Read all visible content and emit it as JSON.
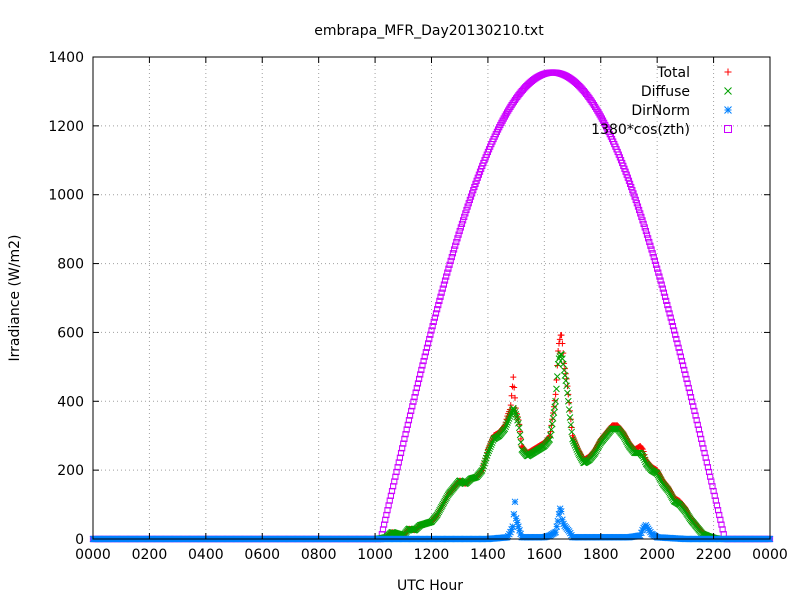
{
  "chart_data": {
    "type": "scatter",
    "title": "embrapa_MFR_Day20130210.txt",
    "xlabel": "UTC Hour",
    "ylabel": "Irradiance (W/m2)",
    "xlim": [
      0,
      2400
    ],
    "ylim": [
      0,
      1400
    ],
    "grid": true,
    "legend_position": "top-right",
    "x_ticks": [
      "0000",
      "0200",
      "0400",
      "0600",
      "0800",
      "1000",
      "1200",
      "1400",
      "1600",
      "1800",
      "2000",
      "2200",
      "0000"
    ],
    "y_ticks": [
      0,
      200,
      400,
      600,
      800,
      1000,
      1200,
      1400
    ],
    "series": [
      {
        "name": "Total",
        "marker": "plus",
        "color": "#ff0000",
        "x": [
          1010,
          1040,
          1060,
          1080,
          1100,
          1120,
          1140,
          1160,
          1180,
          1200,
          1220,
          1240,
          1260,
          1280,
          1300,
          1320,
          1340,
          1360,
          1380,
          1400,
          1420,
          1440,
          1460,
          1470,
          1480,
          1490,
          1500,
          1510,
          1520,
          1540,
          1560,
          1580,
          1600,
          1620,
          1640,
          1650,
          1660,
          1665,
          1670,
          1680,
          1690,
          1700,
          1720,
          1740,
          1760,
          1780,
          1800,
          1820,
          1840,
          1860,
          1880,
          1900,
          1920,
          1940,
          1950,
          1960,
          1980,
          2000,
          2020,
          2040,
          2060,
          2080,
          2100,
          2120,
          2140,
          2160,
          2180,
          2200,
          2220
        ],
        "y": [
          0,
          5,
          20,
          15,
          10,
          30,
          25,
          40,
          45,
          50,
          70,
          100,
          130,
          150,
          170,
          160,
          175,
          180,
          200,
          260,
          300,
          310,
          330,
          360,
          380,
          470,
          370,
          340,
          270,
          250,
          260,
          270,
          280,
          300,
          420,
          560,
          600,
          560,
          510,
          460,
          380,
          300,
          260,
          230,
          240,
          260,
          290,
          310,
          330,
          330,
          310,
          280,
          260,
          270,
          260,
          230,
          210,
          200,
          170,
          150,
          120,
          110,
          90,
          60,
          40,
          20,
          10,
          5,
          0
        ]
      },
      {
        "name": "Diffuse",
        "marker": "cross",
        "color": "#00a000",
        "x": [
          1010,
          1040,
          1060,
          1080,
          1100,
          1120,
          1140,
          1160,
          1180,
          1200,
          1220,
          1240,
          1260,
          1280,
          1300,
          1320,
          1340,
          1360,
          1380,
          1400,
          1420,
          1440,
          1460,
          1470,
          1480,
          1490,
          1500,
          1510,
          1520,
          1540,
          1560,
          1580,
          1600,
          1620,
          1640,
          1650,
          1660,
          1665,
          1670,
          1680,
          1690,
          1700,
          1720,
          1740,
          1760,
          1780,
          1800,
          1820,
          1840,
          1860,
          1880,
          1900,
          1920,
          1940,
          1950,
          1960,
          1980,
          2000,
          2020,
          2040,
          2060,
          2080,
          2100,
          2120,
          2140,
          2160,
          2180,
          2200,
          2220
        ],
        "y": [
          0,
          5,
          20,
          15,
          10,
          30,
          25,
          40,
          45,
          50,
          70,
          100,
          130,
          150,
          170,
          160,
          175,
          180,
          200,
          250,
          290,
          300,
          320,
          340,
          360,
          380,
          360,
          330,
          260,
          240,
          250,
          260,
          270,
          290,
          400,
          520,
          540,
          520,
          490,
          440,
          360,
          290,
          250,
          220,
          230,
          250,
          280,
          300,
          320,
          320,
          300,
          270,
          250,
          250,
          240,
          220,
          200,
          190,
          160,
          140,
          110,
          100,
          80,
          55,
          35,
          15,
          8,
          3,
          0
        ]
      },
      {
        "name": "DirNorm",
        "marker": "star",
        "color": "#0080ff",
        "x": [
          0,
          200,
          400,
          600,
          800,
          1000,
          1100,
          1200,
          1300,
          1400,
          1470,
          1480,
          1490,
          1495,
          1500,
          1510,
          1520,
          1560,
          1600,
          1620,
          1640,
          1650,
          1655,
          1660,
          1665,
          1670,
          1680,
          1690,
          1700,
          1800,
          1900,
          1940,
          1950,
          1960,
          1980,
          2000,
          2100,
          2200,
          2400
        ],
        "y": [
          0,
          0,
          0,
          0,
          0,
          0,
          0,
          0,
          0,
          0,
          5,
          20,
          40,
          120,
          60,
          30,
          5,
          5,
          5,
          10,
          20,
          60,
          90,
          80,
          50,
          40,
          30,
          20,
          5,
          5,
          5,
          10,
          30,
          40,
          15,
          5,
          0,
          0,
          0
        ]
      },
      {
        "name": "1380*cos(zth)",
        "marker": "square",
        "color": "#cc00ff",
        "formula": {
          "amplitude": 1355,
          "peak_x": 1630,
          "start_x": 1020,
          "end_x": 2240
        },
        "x": [
          0,
          200,
          400,
          600,
          800,
          1000,
          1020,
          1100,
          1200,
          1300,
          1400,
          1500,
          1600,
          1630,
          1700,
          1800,
          1900,
          2000,
          2100,
          2200,
          2240,
          2400
        ],
        "y": [
          0,
          0,
          0,
          0,
          0,
          0,
          0,
          320,
          680,
          975,
          1200,
          1318,
          1350,
          1355,
          1330,
          1247,
          1090,
          800,
          520,
          180,
          0,
          0
        ]
      }
    ]
  }
}
